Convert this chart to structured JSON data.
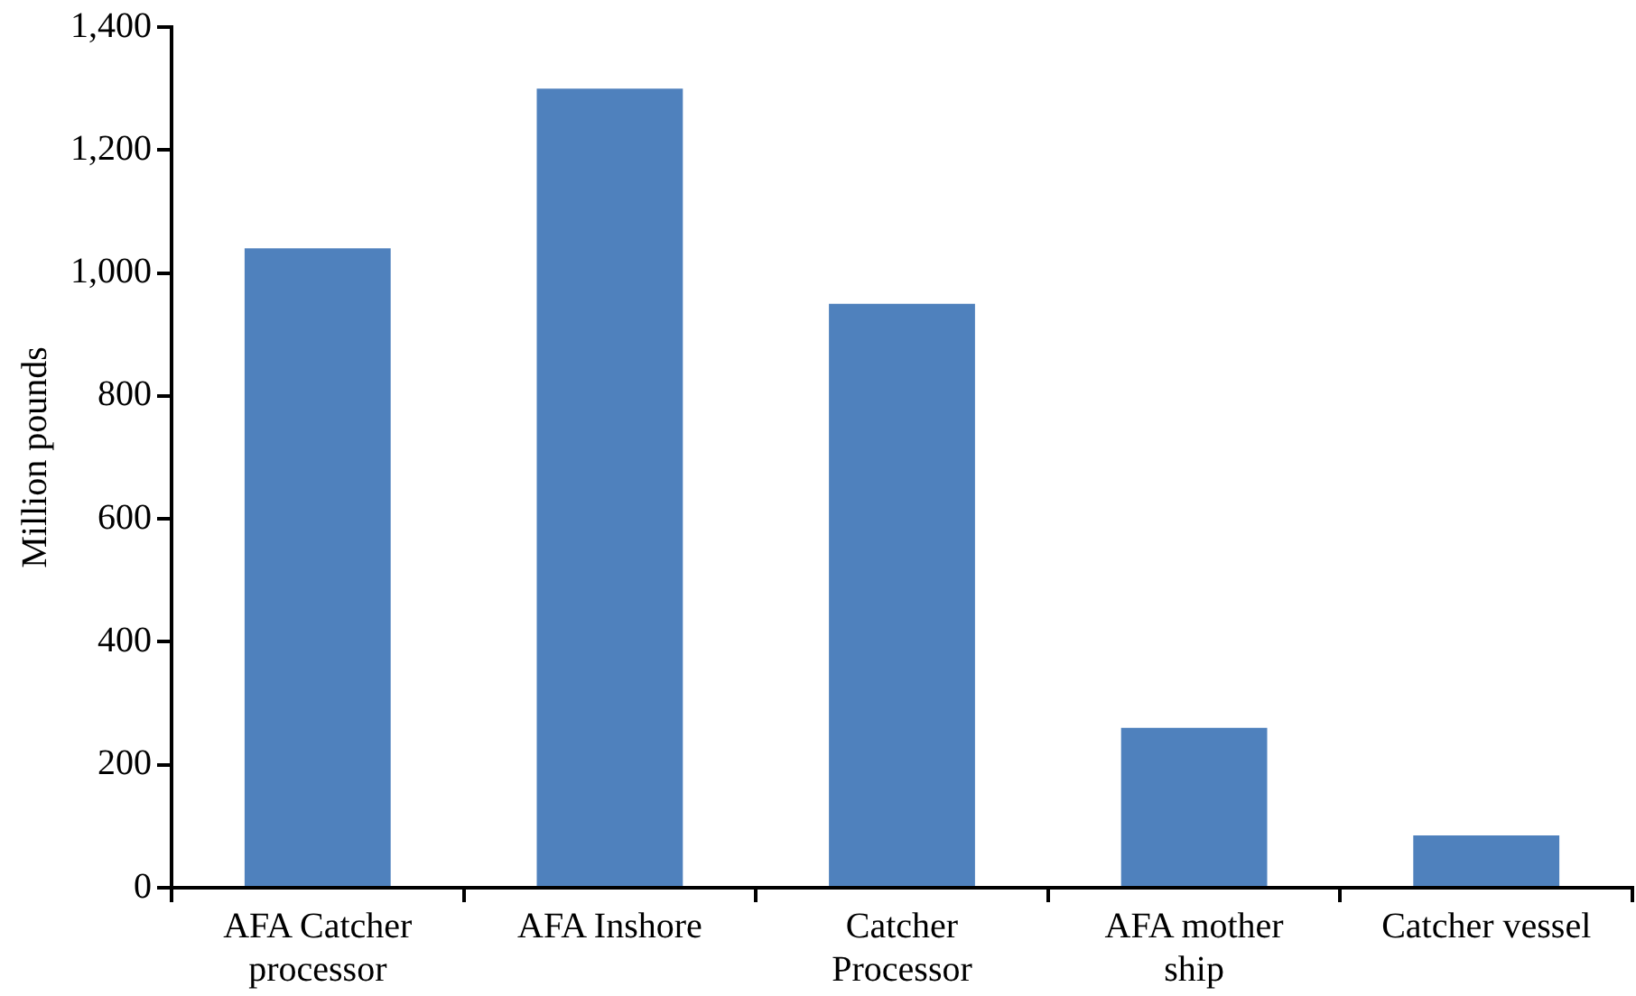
{
  "chart_data": {
    "type": "bar",
    "ylabel": "Million pounds",
    "categories": [
      "AFA Catcher processor",
      "AFA Inshore",
      "Catcher Processor",
      "AFA mother ship",
      "Catcher vessel"
    ],
    "values": [
      1040,
      1300,
      950,
      260,
      85
    ],
    "color": "#4f81bd",
    "ylim": [
      0,
      1400
    ],
    "yticks": [
      0,
      200,
      400,
      600,
      800,
      {
        "value": 1000,
        "label": "1,000"
      },
      {
        "value": 1200,
        "label": "1,200"
      },
      {
        "value": 1400,
        "label": "1,400"
      }
    ],
    "grid": false,
    "legend": false
  }
}
